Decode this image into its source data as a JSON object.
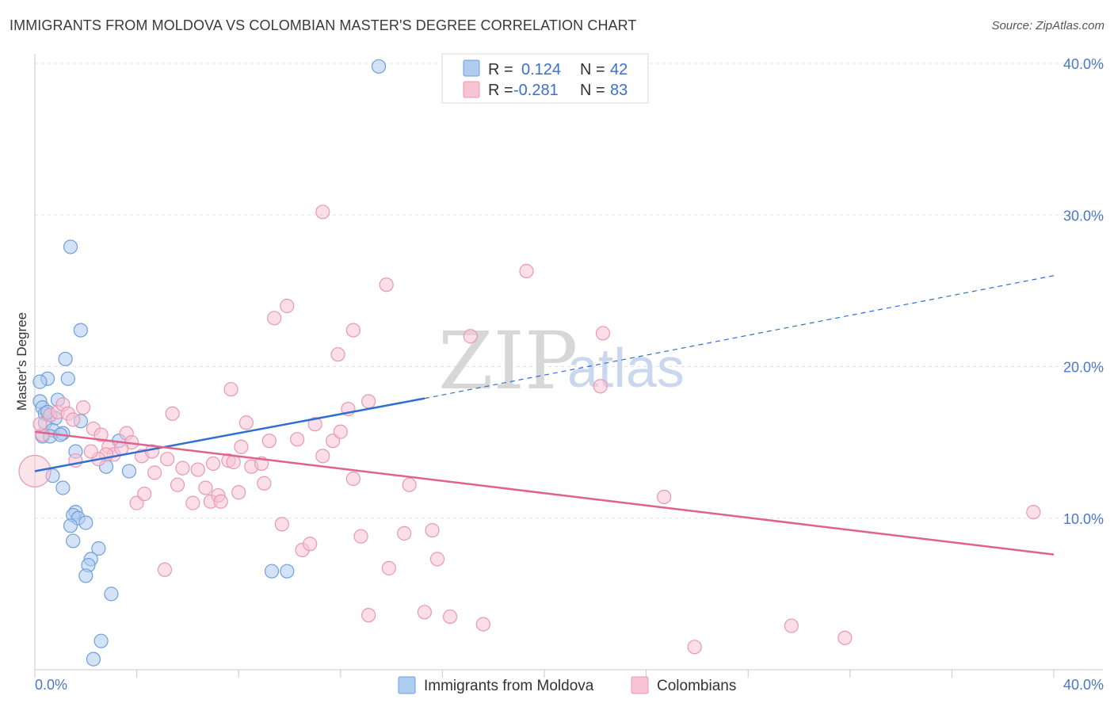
{
  "title": "IMMIGRANTS FROM MOLDOVA VS COLOMBIAN MASTER'S DEGREE CORRELATION CHART",
  "source": "Source: ZipAtlas.com",
  "watermark": {
    "zip": "ZIP",
    "atlas": "atlas"
  },
  "legend_top": [
    {
      "r_label": "R =",
      "r_value": "0.124",
      "n_label": "N =",
      "n_value": "42",
      "fill": "#aecbf0",
      "stroke": "#6f9fdc"
    },
    {
      "r_label": "R =",
      "r_value": "-0.281",
      "n_label": "N =",
      "n_value": "83",
      "fill": "#f8c3d3",
      "stroke": "#e898b3"
    }
  ],
  "chart_data": {
    "type": "scatter",
    "title": "IMMIGRANTS FROM MOLDOVA VS COLOMBIAN MASTER'S DEGREE CORRELATION CHART",
    "xlabel": "",
    "ylabel": "Master's Degree",
    "xlim": [
      0,
      40
    ],
    "ylim": [
      0,
      40
    ],
    "x_tick_labels": [
      {
        "v": 0,
        "label": "0.0%"
      },
      {
        "v": 40,
        "label": "40.0%"
      }
    ],
    "y_tick_labels": [
      {
        "v": 10,
        "label": "10.0%"
      },
      {
        "v": 20,
        "label": "20.0%"
      },
      {
        "v": 30,
        "label": "30.0%"
      },
      {
        "v": 40,
        "label": "40.0%"
      }
    ],
    "series": [
      {
        "name": "Immigrants from Moldova",
        "color": "#6f9fdc",
        "fill": "#aecbf0",
        "trend": {
          "x0": 0,
          "y0": 13.1,
          "x1": 15.3,
          "y1": 17.9,
          "dash_to_x": 40,
          "dash_to_y": 26.0,
          "color": "#2f6fd0"
        },
        "points": [
          {
            "x": 13.5,
            "y": 39.8
          },
          {
            "x": 1.4,
            "y": 27.9
          },
          {
            "x": 1.8,
            "y": 22.4
          },
          {
            "x": 1.2,
            "y": 20.5
          },
          {
            "x": 1.3,
            "y": 19.2
          },
          {
            "x": 0.5,
            "y": 19.2
          },
          {
            "x": 0.2,
            "y": 19.0
          },
          {
            "x": 0.2,
            "y": 17.7
          },
          {
            "x": 0.3,
            "y": 17.3
          },
          {
            "x": 0.9,
            "y": 17.8
          },
          {
            "x": 0.6,
            "y": 16.8
          },
          {
            "x": 0.8,
            "y": 16.6
          },
          {
            "x": 0.4,
            "y": 16.3
          },
          {
            "x": 1.8,
            "y": 16.4
          },
          {
            "x": 0.7,
            "y": 15.8
          },
          {
            "x": 1.1,
            "y": 15.6
          },
          {
            "x": 0.3,
            "y": 15.4
          },
          {
            "x": 0.6,
            "y": 15.4
          },
          {
            "x": 3.3,
            "y": 15.1
          },
          {
            "x": 1.6,
            "y": 14.4
          },
          {
            "x": 2.8,
            "y": 13.4
          },
          {
            "x": 3.7,
            "y": 13.1
          },
          {
            "x": 0.7,
            "y": 12.8
          },
          {
            "x": 1.1,
            "y": 12.0
          },
          {
            "x": 1.6,
            "y": 10.4
          },
          {
            "x": 1.5,
            "y": 10.2
          },
          {
            "x": 1.7,
            "y": 10.0
          },
          {
            "x": 2.0,
            "y": 9.7
          },
          {
            "x": 1.4,
            "y": 9.5
          },
          {
            "x": 1.5,
            "y": 8.5
          },
          {
            "x": 2.5,
            "y": 8.0
          },
          {
            "x": 2.2,
            "y": 7.3
          },
          {
            "x": 2.1,
            "y": 6.9
          },
          {
            "x": 2.0,
            "y": 6.2
          },
          {
            "x": 9.3,
            "y": 6.5
          },
          {
            "x": 9.9,
            "y": 6.5
          },
          {
            "x": 3.0,
            "y": 5.0
          },
          {
            "x": 2.6,
            "y": 1.9
          },
          {
            "x": 2.3,
            "y": 0.7
          },
          {
            "x": 0.4,
            "y": 16.9
          },
          {
            "x": 0.5,
            "y": 17.0
          },
          {
            "x": 1.0,
            "y": 15.5
          }
        ]
      },
      {
        "name": "Colombians",
        "color": "#e898b3",
        "fill": "#f8c3d3",
        "trend": {
          "x0": 0,
          "y0": 15.7,
          "x1": 40,
          "y1": 7.6,
          "color": "#e0628f"
        },
        "points": [
          {
            "x": 0.0,
            "y": 13.1,
            "big": true
          },
          {
            "x": 0.3,
            "y": 15.5
          },
          {
            "x": 0.6,
            "y": 16.8
          },
          {
            "x": 0.9,
            "y": 17.0
          },
          {
            "x": 1.1,
            "y": 17.5
          },
          {
            "x": 1.3,
            "y": 16.9
          },
          {
            "x": 1.5,
            "y": 16.5
          },
          {
            "x": 1.9,
            "y": 17.3
          },
          {
            "x": 2.3,
            "y": 15.9
          },
          {
            "x": 2.6,
            "y": 15.5
          },
          {
            "x": 2.9,
            "y": 14.7
          },
          {
            "x": 3.1,
            "y": 14.2
          },
          {
            "x": 3.6,
            "y": 15.6
          },
          {
            "x": 3.8,
            "y": 15.0
          },
          {
            "x": 4.2,
            "y": 14.1
          },
          {
            "x": 4.7,
            "y": 13.0
          },
          {
            "x": 5.2,
            "y": 13.9
          },
          {
            "x": 5.6,
            "y": 12.2
          },
          {
            "x": 5.8,
            "y": 13.3
          },
          {
            "x": 6.2,
            "y": 11.0
          },
          {
            "x": 6.4,
            "y": 13.2
          },
          {
            "x": 6.9,
            "y": 11.1
          },
          {
            "x": 7.0,
            "y": 13.6
          },
          {
            "x": 7.2,
            "y": 11.5
          },
          {
            "x": 7.6,
            "y": 13.8
          },
          {
            "x": 7.7,
            "y": 18.5
          },
          {
            "x": 7.8,
            "y": 13.7
          },
          {
            "x": 8.0,
            "y": 11.7
          },
          {
            "x": 8.1,
            "y": 14.7
          },
          {
            "x": 8.3,
            "y": 16.3
          },
          {
            "x": 8.5,
            "y": 13.4
          },
          {
            "x": 8.9,
            "y": 13.6
          },
          {
            "x": 9.0,
            "y": 12.3
          },
          {
            "x": 9.2,
            "y": 15.1
          },
          {
            "x": 9.4,
            "y": 23.2
          },
          {
            "x": 9.7,
            "y": 9.6
          },
          {
            "x": 9.9,
            "y": 24.0
          },
          {
            "x": 10.3,
            "y": 15.2
          },
          {
            "x": 10.5,
            "y": 7.9
          },
          {
            "x": 10.8,
            "y": 8.3
          },
          {
            "x": 11.0,
            "y": 16.2
          },
          {
            "x": 11.3,
            "y": 14.1
          },
          {
            "x": 11.3,
            "y": 30.2
          },
          {
            "x": 11.7,
            "y": 15.1
          },
          {
            "x": 11.9,
            "y": 20.8
          },
          {
            "x": 12.0,
            "y": 15.7
          },
          {
            "x": 12.3,
            "y": 17.2
          },
          {
            "x": 12.5,
            "y": 12.6
          },
          {
            "x": 12.5,
            "y": 22.4
          },
          {
            "x": 12.8,
            "y": 8.8
          },
          {
            "x": 13.1,
            "y": 17.7
          },
          {
            "x": 13.1,
            "y": 3.6
          },
          {
            "x": 13.8,
            "y": 25.4
          },
          {
            "x": 13.9,
            "y": 6.7
          },
          {
            "x": 14.5,
            "y": 9.0
          },
          {
            "x": 14.7,
            "y": 12.2
          },
          {
            "x": 15.3,
            "y": 3.8
          },
          {
            "x": 15.6,
            "y": 9.2
          },
          {
            "x": 15.8,
            "y": 7.3
          },
          {
            "x": 16.3,
            "y": 3.5
          },
          {
            "x": 17.6,
            "y": 3.0
          },
          {
            "x": 19.3,
            "y": 26.3
          },
          {
            "x": 22.2,
            "y": 18.7
          },
          {
            "x": 22.3,
            "y": 22.2
          },
          {
            "x": 24.7,
            "y": 11.4
          },
          {
            "x": 25.9,
            "y": 1.5
          },
          {
            "x": 29.7,
            "y": 2.9
          },
          {
            "x": 31.8,
            "y": 2.1
          },
          {
            "x": 39.2,
            "y": 10.4
          },
          {
            "x": 17.1,
            "y": 22.0
          },
          {
            "x": 5.1,
            "y": 6.6
          },
          {
            "x": 5.4,
            "y": 16.9
          },
          {
            "x": 4.0,
            "y": 11.0
          },
          {
            "x": 4.3,
            "y": 11.6
          },
          {
            "x": 2.8,
            "y": 14.2
          },
          {
            "x": 2.5,
            "y": 13.9
          },
          {
            "x": 3.4,
            "y": 14.6
          },
          {
            "x": 6.7,
            "y": 12.0
          },
          {
            "x": 4.6,
            "y": 14.4
          },
          {
            "x": 1.6,
            "y": 13.8
          },
          {
            "x": 2.2,
            "y": 14.4
          },
          {
            "x": 0.2,
            "y": 16.2
          },
          {
            "x": 7.3,
            "y": 11.1
          }
        ]
      }
    ]
  },
  "legend_bottom": [
    {
      "label": "Immigrants from Moldova",
      "fill": "#aecbf0",
      "stroke": "#6f9fdc"
    },
    {
      "label": "Colombians",
      "fill": "#f8c3d3",
      "stroke": "#e898b3"
    }
  ]
}
